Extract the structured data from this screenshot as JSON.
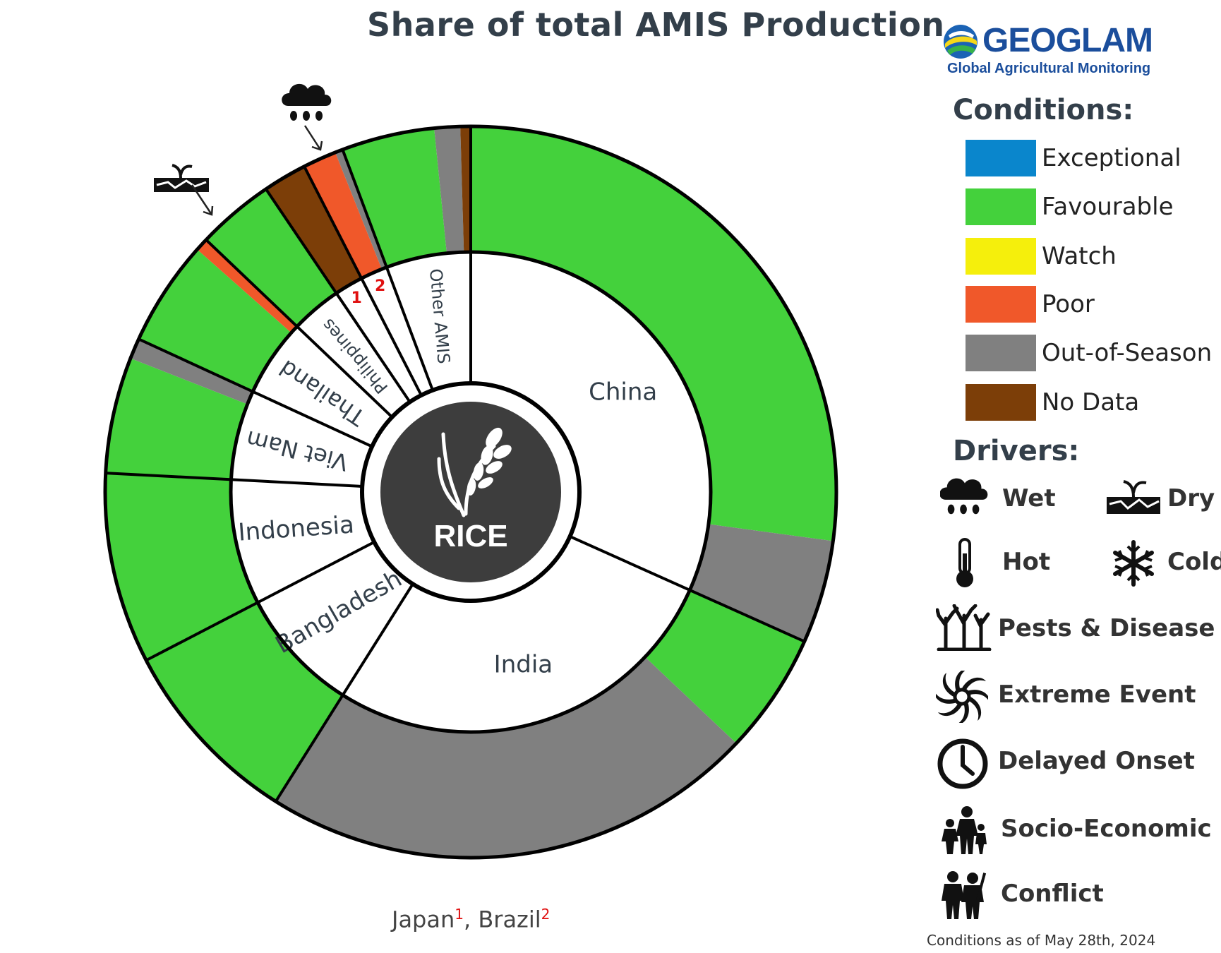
{
  "chart_data": {
    "type": "donut",
    "title": "Share of total AMIS Production",
    "center_label": "RICE",
    "countries": [
      {
        "name": "China",
        "value": 27.8,
        "label_visible": true,
        "conditions": [
          {
            "condition": "Favourable",
            "value": 23.8
          },
          {
            "condition": "Out-of-Season",
            "value": 4.0
          }
        ]
      },
      {
        "name": "India",
        "value": 23.9,
        "label_visible": true,
        "conditions": [
          {
            "condition": "Favourable",
            "value": 4.7
          },
          {
            "condition": "Out-of-Season",
            "value": 19.2
          }
        ]
      },
      {
        "name": "Bangladesh",
        "value": 7.4,
        "label_visible": true,
        "conditions": [
          {
            "condition": "Favourable",
            "value": 7.4
          }
        ]
      },
      {
        "name": "Indonesia",
        "value": 7.4,
        "label_visible": true,
        "conditions": [
          {
            "condition": "Favourable",
            "value": 7.4
          }
        ]
      },
      {
        "name": "Viet Nam",
        "value": 5.3,
        "label_visible": true,
        "conditions": [
          {
            "condition": "Favourable",
            "value": 4.5
          },
          {
            "condition": "Out-of-Season",
            "value": 0.8
          }
        ]
      },
      {
        "name": "Thailand",
        "value": 4.6,
        "label_visible": true,
        "conditions": [
          {
            "condition": "Favourable",
            "value": 4.1
          },
          {
            "condition": "Poor",
            "value": 0.5
          }
        ]
      },
      {
        "name": "Philippines",
        "value": 3.0,
        "label_visible": true,
        "conditions": [
          {
            "condition": "Favourable",
            "value": 3.0
          }
        ]
      },
      {
        "name": "Japan",
        "value": 1.7,
        "label_visible": false,
        "conditions": [
          {
            "condition": "No Data",
            "value": 1.7
          }
        ]
      },
      {
        "name": "Brazil",
        "value": 1.6,
        "label_visible": false,
        "conditions": [
          {
            "condition": "Poor",
            "value": 1.3
          },
          {
            "condition": "Out-of-Season",
            "value": 0.3
          }
        ]
      },
      {
        "name": "Other AMIS",
        "value": 5.0,
        "label_visible": true,
        "conditions": [
          {
            "condition": "Favourable",
            "value": 3.6
          },
          {
            "condition": "Out-of-Season",
            "value": 1.0
          },
          {
            "condition": "No Data",
            "value": 0.4
          }
        ]
      }
    ],
    "footnote_markers": [
      {
        "marker": "1",
        "country": "Japan"
      },
      {
        "marker": "2",
        "country": "Brazil"
      }
    ],
    "driver_annotations": [
      {
        "driver": "Dry",
        "country": "Thailand",
        "icon": "dry-icon"
      },
      {
        "driver": "Wet",
        "country": "Brazil",
        "icon": "wet-icon"
      }
    ]
  },
  "condition_colors": {
    "Exceptional": "#0a86cc",
    "Favourable": "#44d13c",
    "Watch": "#f5ef0c",
    "Poor": "#f0582a",
    "Out-of-Season": "#808080",
    "No Data": "#7c3e08"
  },
  "footnote": {
    "japan": "Japan",
    "japan_mark": "1",
    "brazil": "Brazil",
    "brazil_mark": "2",
    "sep": ", "
  },
  "legend": {
    "logo_text": "GEOGLAM",
    "logo_subtitle": "Global Agricultural Monitoring",
    "conditions_title": "Conditions:",
    "conditions": [
      {
        "label": "Exceptional",
        "color": "#0a86cc"
      },
      {
        "label": "Favourable",
        "color": "#44d13c"
      },
      {
        "label": "Watch",
        "color": "#f5ef0c"
      },
      {
        "label": "Poor",
        "color": "#f0582a"
      },
      {
        "label": "Out-of-Season",
        "color": "#808080"
      },
      {
        "label": "No Data",
        "color": "#7c3e08"
      }
    ],
    "drivers_title": "Drivers:",
    "drivers": [
      {
        "label": "Wet",
        "icon": "wet-icon"
      },
      {
        "label": "Dry",
        "icon": "dry-icon"
      },
      {
        "label": "Hot",
        "icon": "thermometer-icon"
      },
      {
        "label": "Cold",
        "icon": "snowflake-icon"
      },
      {
        "label": "Pests & Disease",
        "icon": "pests-icon"
      },
      {
        "label": "Extreme Event",
        "icon": "cyclone-icon"
      },
      {
        "label": "Delayed Onset",
        "icon": "clock-icon"
      },
      {
        "label": "Socio-Economic",
        "icon": "people-icon"
      },
      {
        "label": "Conflict",
        "icon": "soldiers-icon"
      }
    ]
  },
  "as_of": "Conditions as of May 28th, 2024"
}
